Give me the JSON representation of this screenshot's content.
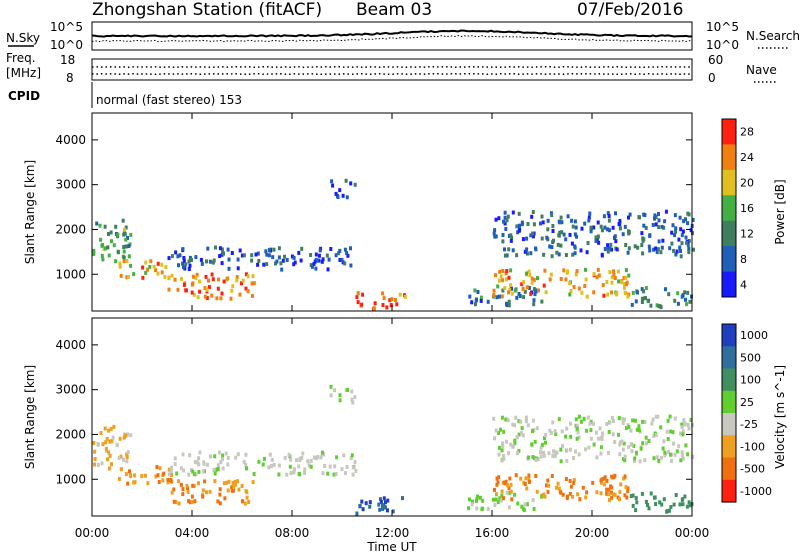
{
  "header": {
    "station": "Zhongshan Station (fitACF)",
    "beam": "Beam 03",
    "date": "07/Feb/2016",
    "cpid_text": "normal (fast stereo) 153"
  },
  "strip": {
    "nsky_label": "N.Sky",
    "nsearch_label": "N.Search",
    "noise_ticks": [
      "10^5",
      "10^0"
    ],
    "noise_right_ticks": [
      "10^5",
      "10^0"
    ],
    "freq_label_1": "Freq.",
    "freq_label_2": "[MHz]",
    "freq_ticks": [
      "18",
      "8"
    ],
    "nave_label": "Nave",
    "nave_ticks": [
      "60",
      "0"
    ],
    "cpid_label": "CPID"
  },
  "x_axis": {
    "label": "Time UT",
    "ticks": [
      "00:00",
      "04:00",
      "08:00",
      "12:00",
      "16:00",
      "20:00",
      "00:00"
    ]
  },
  "panels": [
    {
      "ylabel": "Slant Range [km]",
      "yticks": [
        "4000",
        "3000",
        "2000",
        "1000"
      ],
      "colorbar_label": "Power [dB]",
      "colorbar_ticks": [
        "28",
        "24",
        "20",
        "16",
        "12",
        "8",
        "4"
      ],
      "colors": [
        "#1a1aff",
        "#1f5fb8",
        "#3f7f5f",
        "#44b044",
        "#e0c020",
        "#f08010",
        "#ff2010"
      ]
    },
    {
      "ylabel": "Slant Range [km]",
      "yticks": [
        "4000",
        "3000",
        "2000",
        "1000"
      ],
      "colorbar_label": "Velocity [m s^-1]",
      "colorbar_ticks": [
        "1000",
        "500",
        "100",
        "25",
        "-25",
        "-100",
        "-500",
        "-1000"
      ],
      "colors": [
        "#1f3fc0",
        "#2f6fa0",
        "#3f8f5f",
        "#5fcf30",
        "#c8c8c0",
        "#f0a020",
        "#f07010",
        "#ff2010"
      ]
    }
  ],
  "chart_data": {
    "type": "heatmap",
    "title": "Zhongshan Station (fitACF)  Beam 03  07/Feb/2016",
    "xlabel": "Time UT",
    "ylabel": "Slant Range [km]",
    "x_range_hours": [
      0,
      24
    ],
    "ylim_km": [
      180,
      4600
    ],
    "grid": false,
    "echo_regions": [
      {
        "t_start_h": 0.0,
        "t_end_h": 1.5,
        "range_km": [
          1200,
          2200
        ],
        "power_db": 14,
        "velocity_ms": -60
      },
      {
        "t_start_h": 1.0,
        "t_end_h": 3.2,
        "range_km": [
          900,
          1300
        ],
        "power_db": 22,
        "velocity_ms": -300
      },
      {
        "t_start_h": 3.0,
        "t_end_h": 6.5,
        "range_km": [
          450,
          1000
        ],
        "power_db": 24,
        "velocity_ms": -300
      },
      {
        "t_start_h": 3.0,
        "t_end_h": 10.5,
        "range_km": [
          1100,
          1600
        ],
        "power_db": 8,
        "velocity_ms": -10
      },
      {
        "t_start_h": 9.5,
        "t_end_h": 10.5,
        "range_km": [
          2700,
          3100
        ],
        "power_db": 6,
        "velocity_ms": 0
      },
      {
        "t_start_h": 10.5,
        "t_end_h": 12.5,
        "range_km": [
          200,
          600
        ],
        "power_db": 26,
        "velocity_ms": 700
      },
      {
        "t_start_h": 15.0,
        "t_end_h": 18.0,
        "range_km": [
          300,
          700
        ],
        "power_db": 10,
        "velocity_ms": 10
      },
      {
        "t_start_h": 16.0,
        "t_end_h": 21.5,
        "range_km": [
          500,
          1100
        ],
        "power_db": 22,
        "velocity_ms": -300
      },
      {
        "t_start_h": 16.0,
        "t_end_h": 24.0,
        "range_km": [
          1400,
          2400
        ],
        "power_db": 9,
        "velocity_ms": -5
      },
      {
        "t_start_h": 21.5,
        "t_end_h": 24.0,
        "range_km": [
          250,
          700
        ],
        "power_db": 12,
        "velocity_ms": 200
      }
    ]
  }
}
